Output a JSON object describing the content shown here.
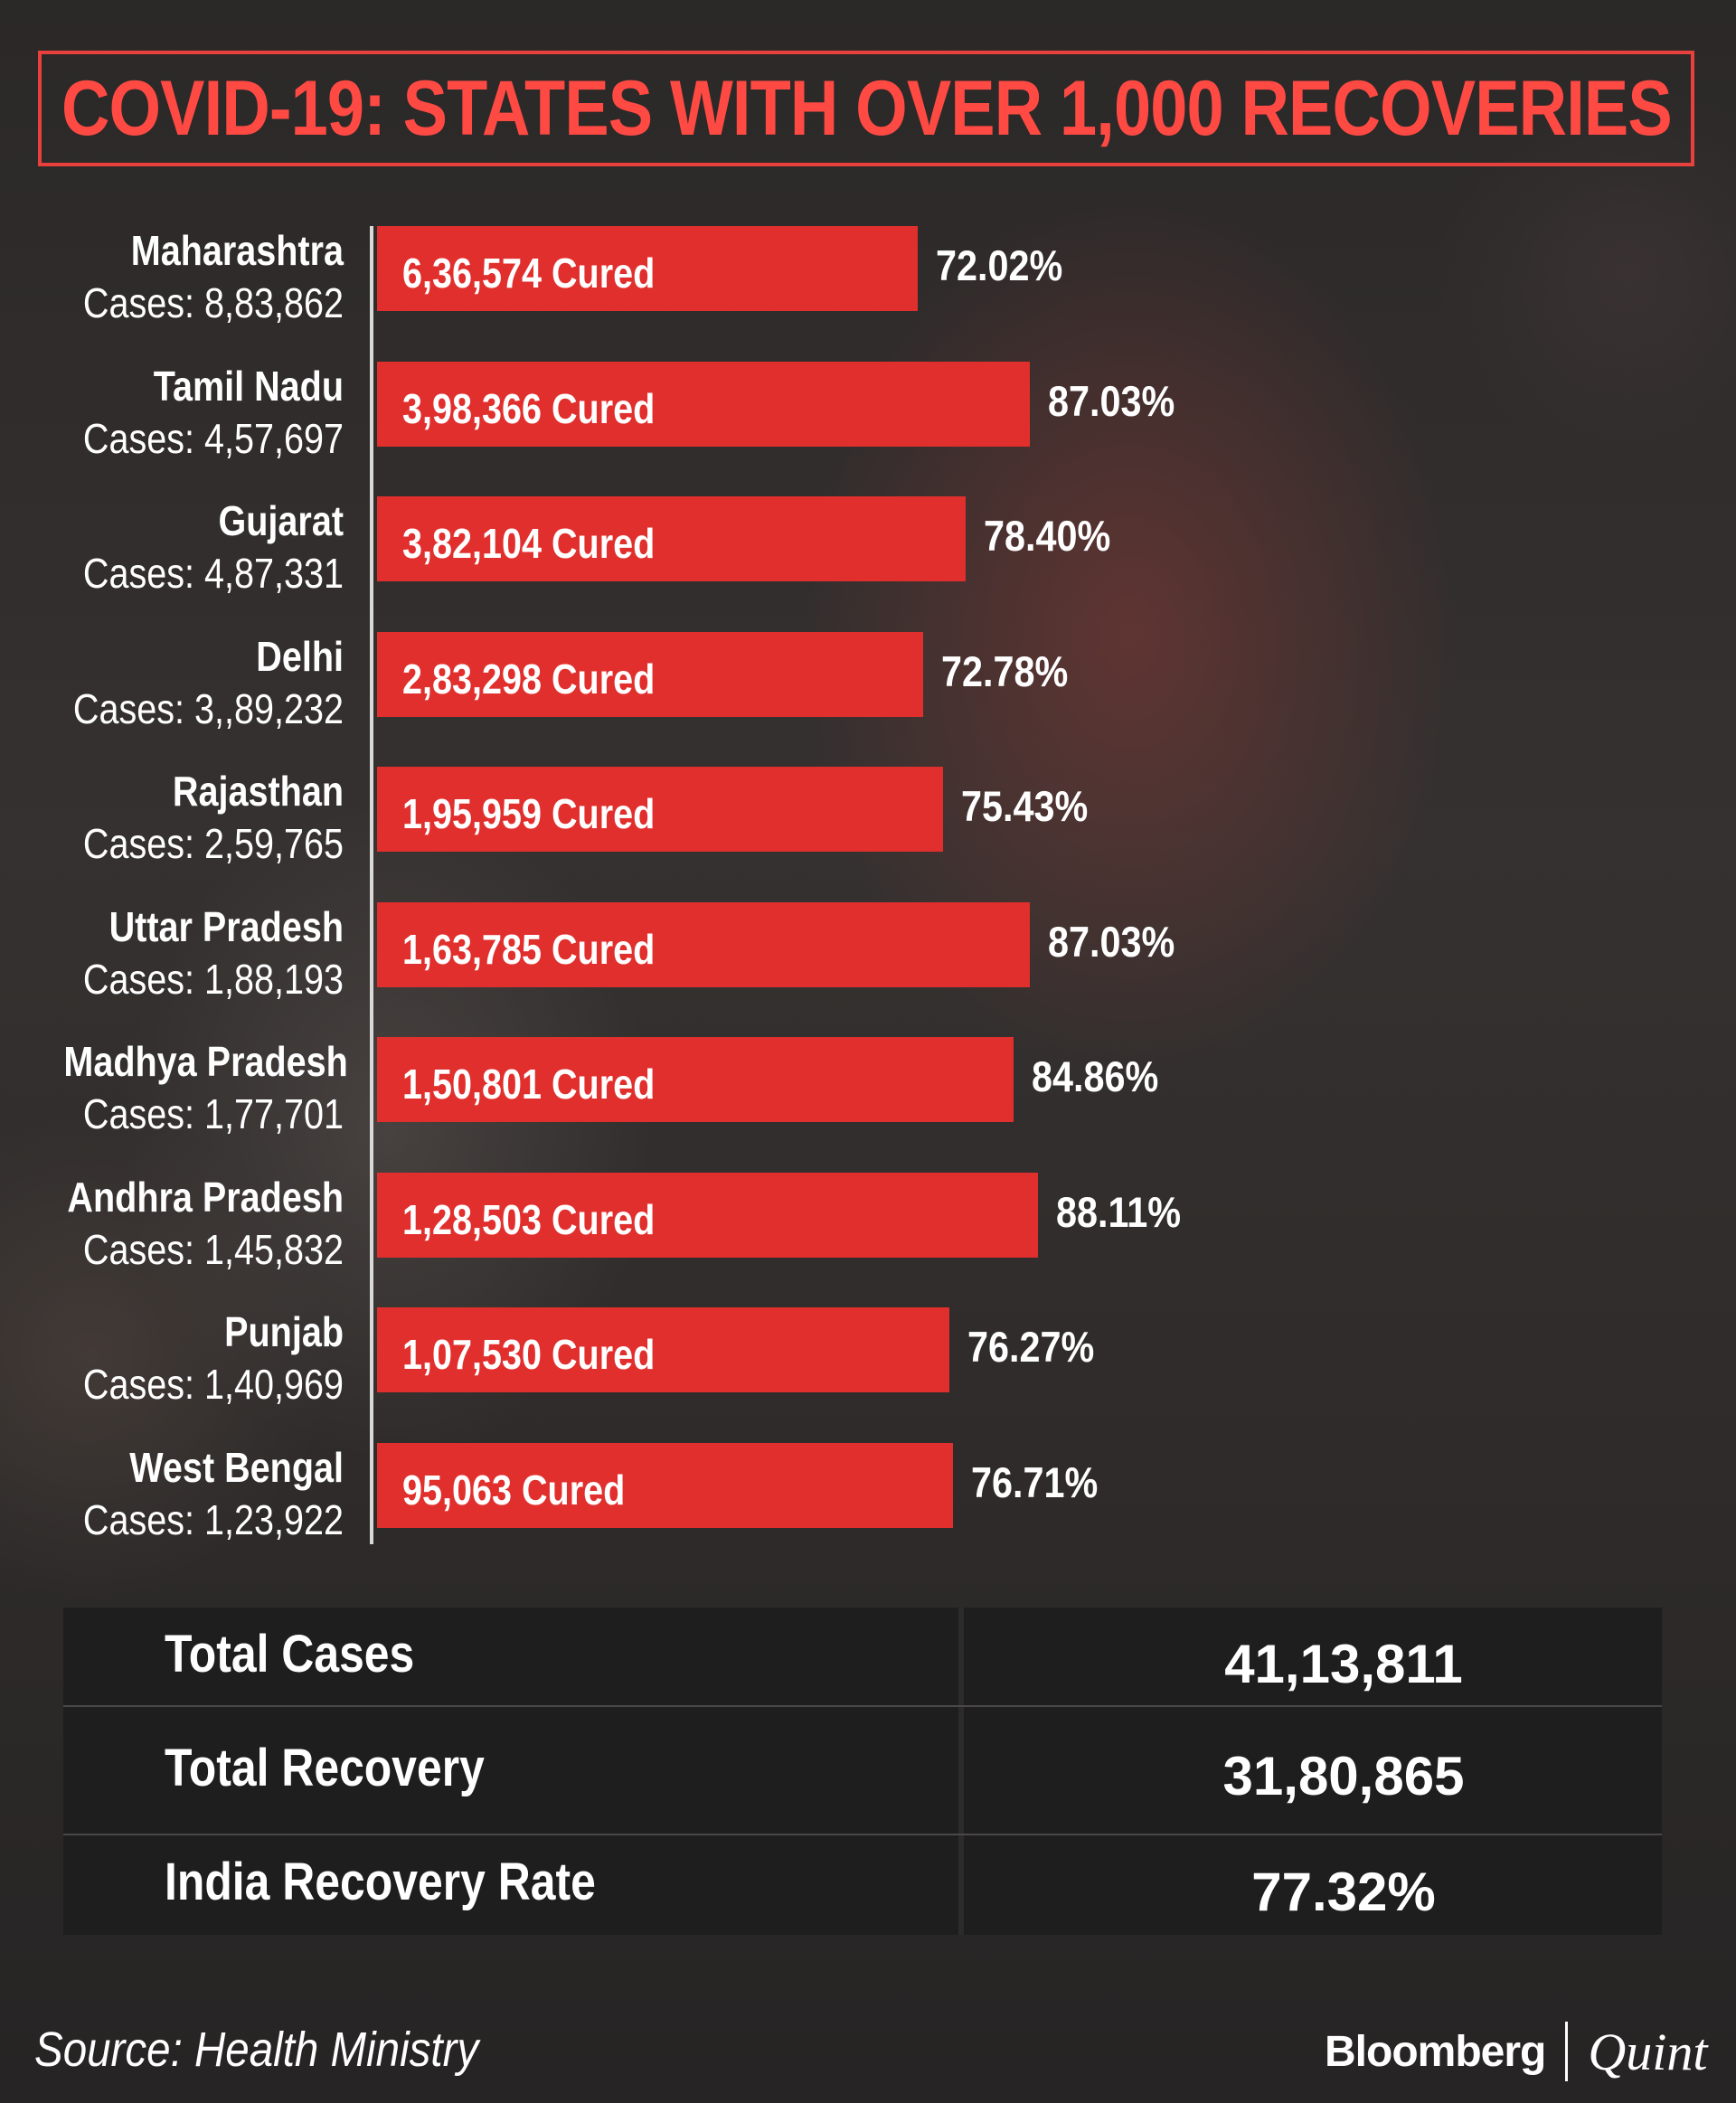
{
  "title": "COVID-19: STATES WITH OVER 1,000 RECOVERIES",
  "chart_data": {
    "type": "bar",
    "orientation": "horizontal",
    "title": "COVID-19: STATES WITH OVER 1,000 RECOVERIES",
    "categories": [
      "Maharashtra",
      "Tamil Nadu",
      "Gujarat",
      "Delhi",
      "Rajasthan",
      "Uttar Pradesh",
      "Madhya Pradesh",
      "Andhra Pradesh",
      "Punjab",
      "West Bengal"
    ],
    "bar_length_pct": [
      72.02,
      87.03,
      78.4,
      72.78,
      75.43,
      87.03,
      84.86,
      88.11,
      76.27,
      76.71
    ],
    "rows": [
      {
        "state": "Maharashtra",
        "cases": "Cases: 8,83,862",
        "cured": "6,36,574",
        "pct": "72.02%"
      },
      {
        "state": "Tamil Nadu",
        "cases": "Cases: 4,57,697",
        "cured": "3,98,366",
        "pct": "87.03%"
      },
      {
        "state": "Gujarat",
        "cases": "Cases: 4,87,331",
        "cured": "3,82,104",
        "pct": "78.40%"
      },
      {
        "state": "Delhi",
        "cases": "Cases: 3,,89,232",
        "cured": "2,83,298",
        "pct": "72.78%"
      },
      {
        "state": "Rajasthan",
        "cases": "Cases: 2,59,765",
        "cured": "1,95,959",
        "pct": "75.43%"
      },
      {
        "state": "Uttar Pradesh",
        "cases": "Cases: 1,88,193",
        "cured": "1,63,785",
        "pct": "87.03%"
      },
      {
        "state": "Madhya Pradesh",
        "cases": "Cases: 1,77,701",
        "cured": "1,50,801",
        "pct": "84.86%"
      },
      {
        "state": "Andhra Pradesh",
        "cases": "Cases: 1,45,832",
        "cured": "1,28,503",
        "pct": "88.11%"
      },
      {
        "state": "Punjab",
        "cases": "Cases: 1,40,969",
        "cured": "1,07,530",
        "pct": "76.27%"
      },
      {
        "state": "West Bengal",
        "cases": "Cases: 1,23,922",
        "cured": "95,063",
        "pct": "76.71%"
      }
    ],
    "cured_suffix": "Cured",
    "bar_color": "#e12f2d",
    "legend": "none",
    "grid": false
  },
  "summary": {
    "rows": [
      {
        "label": "Total Cases",
        "value": "41,13,811"
      },
      {
        "label": "Total Recovery",
        "value": "31,80,865"
      },
      {
        "label": "India Recovery Rate",
        "value": "77.32%"
      }
    ]
  },
  "footer": {
    "source": "Source: Health Ministry",
    "logo_primary": "Bloomberg",
    "logo_secondary": "Quint"
  },
  "colors": {
    "accent": "#e8403c",
    "bar": "#e12f2d",
    "background": "#2a2727"
  }
}
